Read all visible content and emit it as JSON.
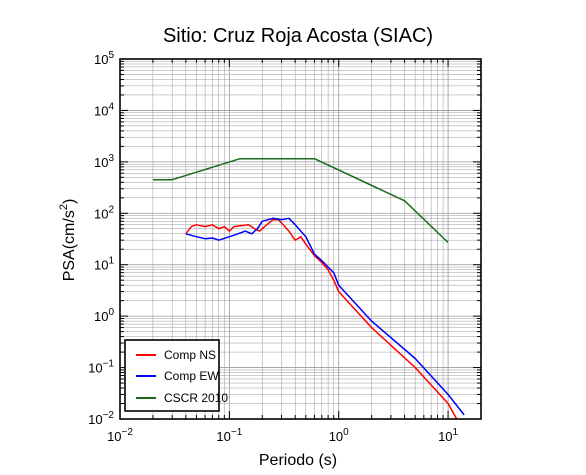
{
  "chart_data": {
    "type": "line",
    "title": "Sitio: Cruz Roja Acosta (SIAC)",
    "xlabel": "Periodo (s)",
    "ylabel": {
      "base": "PSA(cm/s",
      "sup": "2",
      "end": ")"
    },
    "x_scale": "log",
    "y_scale": "log",
    "xlim": [
      0.01,
      20
    ],
    "ylim": [
      0.01,
      100000
    ],
    "x_ticks": [
      {
        "value": 0.01,
        "base": "10",
        "exp": "−2"
      },
      {
        "value": 0.1,
        "base": "10",
        "exp": "−1"
      },
      {
        "value": 1,
        "base": "10",
        "exp": "0"
      },
      {
        "value": 10,
        "base": "10",
        "exp": "1"
      }
    ],
    "y_ticks": [
      {
        "value": 0.01,
        "base": "10",
        "exp": "−2"
      },
      {
        "value": 0.1,
        "base": "10",
        "exp": "−1"
      },
      {
        "value": 1,
        "base": "10",
        "exp": "0"
      },
      {
        "value": 10,
        "base": "10",
        "exp": "1"
      },
      {
        "value": 100,
        "base": "10",
        "exp": "2"
      },
      {
        "value": 1000,
        "base": "10",
        "exp": "3"
      },
      {
        "value": 10000,
        "base": "10",
        "exp": "4"
      },
      {
        "value": 100000,
        "base": "10",
        "exp": "5"
      }
    ],
    "grid": true,
    "legend_position": "bottom-left",
    "series": [
      {
        "name": "Comp NS",
        "color": "#ff0000",
        "points": [
          [
            0.04,
            40
          ],
          [
            0.045,
            55
          ],
          [
            0.05,
            60
          ],
          [
            0.06,
            55
          ],
          [
            0.07,
            60
          ],
          [
            0.08,
            50
          ],
          [
            0.09,
            55
          ],
          [
            0.1,
            45
          ],
          [
            0.11,
            55
          ],
          [
            0.13,
            58
          ],
          [
            0.15,
            60
          ],
          [
            0.17,
            50
          ],
          [
            0.19,
            45
          ],
          [
            0.21,
            55
          ],
          [
            0.25,
            75
          ],
          [
            0.28,
            75
          ],
          [
            0.3,
            65
          ],
          [
            0.35,
            45
          ],
          [
            0.4,
            30
          ],
          [
            0.45,
            35
          ],
          [
            0.5,
            25
          ],
          [
            0.6,
            15
          ],
          [
            0.7,
            11
          ],
          [
            0.8,
            8
          ],
          [
            0.9,
            5
          ],
          [
            1,
            3
          ],
          [
            2,
            0.6
          ],
          [
            5,
            0.1
          ],
          [
            10,
            0.02
          ],
          [
            12,
            0.01
          ]
        ]
      },
      {
        "name": "Comp EW",
        "color": "#0000ff",
        "points": [
          [
            0.04,
            40
          ],
          [
            0.05,
            35
          ],
          [
            0.06,
            32
          ],
          [
            0.07,
            33
          ],
          [
            0.08,
            30
          ],
          [
            0.1,
            35
          ],
          [
            0.12,
            40
          ],
          [
            0.14,
            45
          ],
          [
            0.16,
            40
          ],
          [
            0.18,
            50
          ],
          [
            0.2,
            70
          ],
          [
            0.25,
            80
          ],
          [
            0.3,
            75
          ],
          [
            0.35,
            80
          ],
          [
            0.4,
            60
          ],
          [
            0.5,
            35
          ],
          [
            0.6,
            16
          ],
          [
            0.7,
            12
          ],
          [
            0.8,
            9
          ],
          [
            0.9,
            7
          ],
          [
            1,
            4
          ],
          [
            2,
            0.8
          ],
          [
            5,
            0.15
          ],
          [
            10,
            0.03
          ],
          [
            14,
            0.012
          ]
        ]
      },
      {
        "name": "CSCR 2010",
        "color": "#1a6a1a",
        "points": [
          [
            0.02,
            450
          ],
          [
            0.03,
            450
          ],
          [
            0.125,
            1150
          ],
          [
            0.6,
            1150
          ],
          [
            4,
            175
          ],
          [
            10,
            27
          ]
        ]
      }
    ]
  }
}
